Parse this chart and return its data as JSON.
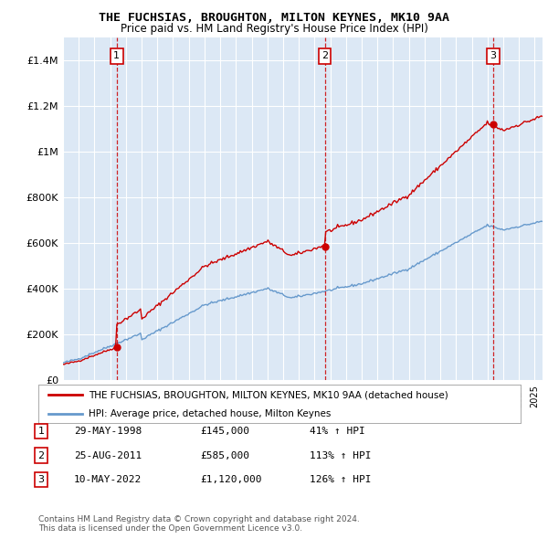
{
  "title": "THE FUCHSIAS, BROUGHTON, MILTON KEYNES, MK10 9AA",
  "subtitle": "Price paid vs. HM Land Registry's House Price Index (HPI)",
  "background_color": "#dce8f5",
  "ylim": [
    0,
    1500000
  ],
  "yticks": [
    0,
    200000,
    400000,
    600000,
    800000,
    1000000,
    1200000,
    1400000
  ],
  "ytick_labels": [
    "£0",
    "£200K",
    "£400K",
    "£600K",
    "£800K",
    "£1M",
    "£1.2M",
    "£1.4M"
  ],
  "sale_dates_num": [
    1998.41,
    2011.65,
    2022.36
  ],
  "sale_prices": [
    145000,
    585000,
    1120000
  ],
  "sale_labels": [
    "1",
    "2",
    "3"
  ],
  "vline_color": "#cc0000",
  "sale_dot_color": "#cc0000",
  "red_line_color": "#cc0000",
  "blue_line_color": "#6699cc",
  "legend_red_label": "THE FUCHSIAS, BROUGHTON, MILTON KEYNES, MK10 9AA (detached house)",
  "legend_blue_label": "HPI: Average price, detached house, Milton Keynes",
  "table_data": [
    [
      "1",
      "29-MAY-1998",
      "£145,000",
      "41% ↑ HPI"
    ],
    [
      "2",
      "25-AUG-2011",
      "£585,000",
      "113% ↑ HPI"
    ],
    [
      "3",
      "10-MAY-2022",
      "£1,120,000",
      "126% ↑ HPI"
    ]
  ],
  "footer": "Contains HM Land Registry data © Crown copyright and database right 2024.\nThis data is licensed under the Open Government Licence v3.0."
}
